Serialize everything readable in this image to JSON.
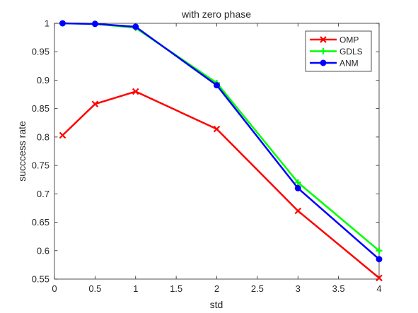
{
  "chart_data": {
    "type": "line",
    "title": "with zero phase",
    "xlabel": "std",
    "ylabel": "succcess rate",
    "xlim": [
      0,
      4
    ],
    "ylim": [
      0.55,
      1
    ],
    "xticks": [
      0,
      0.5,
      1,
      1.5,
      2,
      2.5,
      3,
      3.5,
      4
    ],
    "xtick_labels": [
      "0",
      "0.5",
      "1",
      "1.5",
      "2",
      "2.5",
      "3",
      "3.5",
      "4"
    ],
    "yticks": [
      0.55,
      0.6,
      0.65,
      0.7,
      0.75,
      0.8,
      0.85,
      0.9,
      0.95,
      1
    ],
    "ytick_labels": [
      "0.55",
      "0.6",
      "0.65",
      "0.7",
      "0.75",
      "0.8",
      "0.85",
      "0.9",
      "0.95",
      "1"
    ],
    "grid": false,
    "legend_position": "top-right",
    "x": [
      0.1,
      0.5,
      1,
      2,
      3,
      4
    ],
    "series": [
      {
        "name": "OMP",
        "color": "#ff0000",
        "marker": "x",
        "values": [
          0.803,
          0.858,
          0.88,
          0.814,
          0.67,
          0.552
        ]
      },
      {
        "name": "GDLS",
        "color": "#00ff00",
        "marker": "plus",
        "values": [
          1.0,
          0.999,
          0.992,
          0.895,
          0.72,
          0.6
        ]
      },
      {
        "name": "ANM",
        "color": "#0000ff",
        "marker": "circle",
        "values": [
          1.0,
          0.999,
          0.994,
          0.891,
          0.71,
          0.585
        ]
      }
    ]
  }
}
